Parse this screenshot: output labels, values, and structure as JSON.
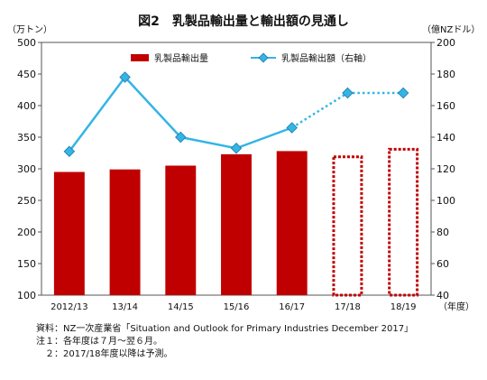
{
  "chart_data": {
    "type": "bar",
    "title": "図2　乳製品輸出量と輸出額の見通し",
    "categories": [
      "2012/13",
      "13/14",
      "14/15",
      "15/16",
      "16/17",
      "17/18",
      "18/19"
    ],
    "y_left_unit": "（万トン）",
    "y_right_unit": "（億NZドル）",
    "x_unit": "（年度）",
    "ylim_left": [
      100,
      500
    ],
    "ylim_right": [
      40,
      200
    ],
    "y_left_ticks": [
      100,
      150,
      200,
      250,
      300,
      350,
      400,
      450,
      500
    ],
    "y_right_ticks": [
      40,
      60,
      80,
      100,
      120,
      140,
      160,
      180,
      200
    ],
    "legend_position": "top",
    "series": [
      {
        "name": "乳製品輸出量",
        "type": "bar",
        "axis": "left",
        "values": [
          295,
          299,
          305,
          323,
          328,
          321,
          333
        ],
        "forecast": [
          false,
          false,
          false,
          false,
          false,
          true,
          true
        ],
        "color": "#c00000"
      },
      {
        "name": "乳製品輸出額（右軸）",
        "type": "line",
        "axis": "right",
        "values": [
          131,
          178,
          140,
          133,
          146,
          168,
          168
        ],
        "forecast": [
          false,
          false,
          false,
          false,
          false,
          true,
          true
        ],
        "color": "#33b5e5"
      }
    ]
  },
  "notes": [
    "資料：NZ一次産業省「Situation and Outlook for Primary Industries December 2017」",
    "注１：各年度は７月～翌６月。",
    "　２：2017/18年度以降は予測。"
  ]
}
